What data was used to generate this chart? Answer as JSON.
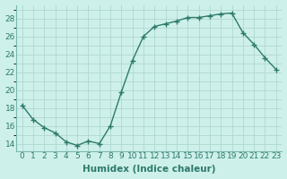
{
  "x": [
    0,
    1,
    2,
    3,
    4,
    5,
    6,
    7,
    8,
    9,
    10,
    11,
    12,
    13,
    14,
    15,
    16,
    17,
    18,
    19,
    20,
    21,
    22,
    23
  ],
  "y": [
    18.3,
    16.7,
    15.8,
    15.2,
    14.2,
    13.8,
    14.3,
    14.0,
    16.0,
    19.8,
    23.3,
    26.0,
    27.1,
    27.4,
    27.7,
    28.1,
    28.1,
    28.3,
    28.5,
    28.6,
    26.4,
    25.1,
    23.6,
    22.3
  ],
  "line_color": "#2d7a6b",
  "marker": "+",
  "marker_size": 4,
  "marker_linewidth": 1.0,
  "background_color": "#cef0ea",
  "grid_color_major": "#aed8d0",
  "grid_color_minor": "#c4e8e2",
  "xlabel": "Humidex (Indice chaleur)",
  "ylabel_ticks": [
    14,
    16,
    18,
    20,
    22,
    24,
    26,
    28
  ],
  "xlim": [
    -0.5,
    23.5
  ],
  "ylim": [
    13.2,
    29.5
  ],
  "xlabel_fontsize": 7.5,
  "tick_fontsize": 6.5,
  "line_width": 1.0
}
